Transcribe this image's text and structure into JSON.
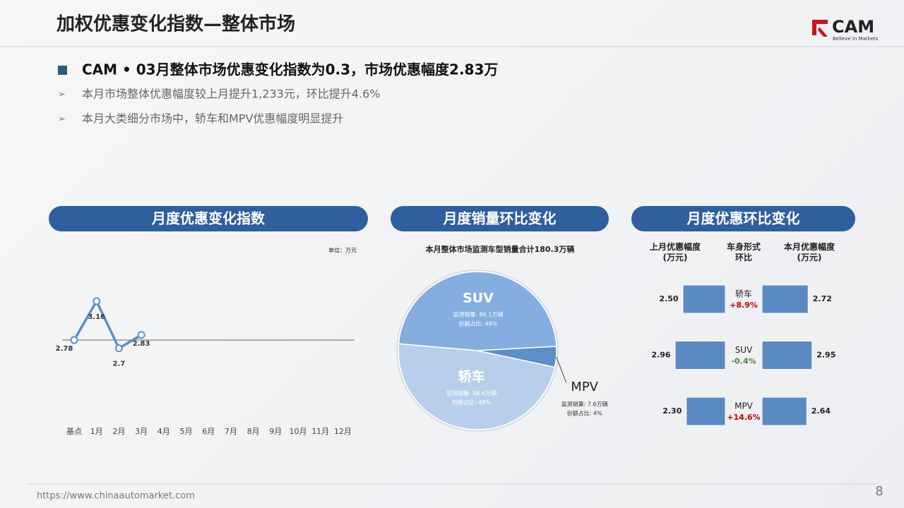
{
  "header": {
    "title": "加权优惠变化指数—整体市场",
    "logo": "CAM",
    "slogan": "Believe in Markets"
  },
  "headline": "CAM • 03月整体市场优惠变化指数为0.3，市场优惠幅度2.83万",
  "bullets": [
    "本月市场整体优惠幅度较上月提升1,233元，环比提升4.6%",
    "本月大类细分市场中，轿车和MPV优惠幅度明显提升"
  ],
  "footer": {
    "url": "https://www.chinaautomarket.com",
    "page": "8"
  },
  "chart_data": [
    {
      "type": "line",
      "title": "月度优惠变化指数",
      "unit": "单位：万元",
      "categories": [
        "基点",
        "1月",
        "2月",
        "3月",
        "4月",
        "5月",
        "6月",
        "7月",
        "8月",
        "9月",
        "10月",
        "11月",
        "12月"
      ],
      "values": [
        2.78,
        3.16,
        2.7,
        2.83,
        null,
        null,
        null,
        null,
        null,
        null,
        null,
        null,
        null
      ],
      "color": "#5b8fc9",
      "ylim": [
        2.0,
        3.5
      ]
    },
    {
      "type": "pie",
      "title": "月度销量环比变化",
      "subtitle": "本月整体市场监测车型销量合计180.3万辆",
      "categories": [
        "SUV",
        "MPV",
        "轿车"
      ],
      "values": [
        86.1,
        7.6,
        86.6
      ],
      "value_labels": [
        "监测销量: 86.1万辆",
        "监测销量: 7.6万辆",
        "监测销量: 86.6万辆"
      ],
      "shares": [
        48,
        4,
        48
      ],
      "share_labels": [
        "份额占比: 48%",
        "份额占比: 4%",
        "份额占比: 48%"
      ],
      "colors": [
        "#84ade0",
        "#5b8fc9",
        "#b8cfeb"
      ]
    },
    {
      "type": "butterfly",
      "title": "月度优惠环比变化",
      "column_label": "车身形式环比",
      "categories": [
        "轿车",
        "SUV",
        "MPV"
      ],
      "series": [
        {
          "name": "上月优惠幅度(万元)",
          "color": "#5b8ac2",
          "values": [
            2.5,
            2.96,
            2.3
          ],
          "value_labels": [
            "2.50",
            "2.96",
            "2.30"
          ]
        },
        {
          "name": "本月优惠幅度(万元)",
          "color": "#5b8ac2",
          "values": [
            2.72,
            2.95,
            2.64
          ],
          "value_labels": [
            "2.72",
            "2.95",
            "2.64"
          ]
        }
      ],
      "change_values": [
        8.9,
        -0.4,
        14.6
      ],
      "change_labels": [
        "+8.9%",
        "-0.4%",
        "+14.6%"
      ],
      "xlim": [
        0,
        3.2
      ]
    }
  ]
}
